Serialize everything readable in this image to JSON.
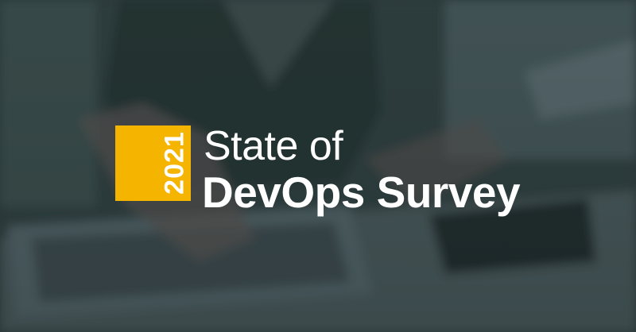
{
  "badge": {
    "year": "2021"
  },
  "title": {
    "line1": "State of",
    "line2": "DevOps Survey"
  }
}
